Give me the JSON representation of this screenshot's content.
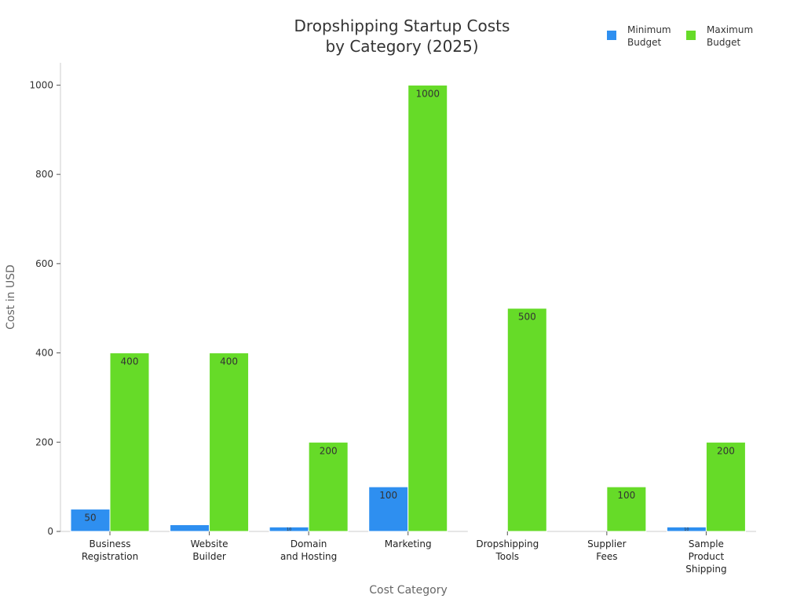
{
  "chart_data": {
    "type": "bar",
    "title_lines": [
      "Dropshipping Startup Costs",
      "by Category (2025)"
    ],
    "xlabel": "Cost Category",
    "ylabel": "Cost in USD",
    "ylim": [
      0,
      1050
    ],
    "yticks": [
      0,
      200,
      400,
      600,
      800,
      1000
    ],
    "grid": false,
    "legend_position": "top-right",
    "categories": [
      [
        "Business",
        "Registration"
      ],
      [
        "Website",
        "Builder"
      ],
      [
        "Domain",
        "and Hosting"
      ],
      [
        "Marketing"
      ],
      [
        "Dropshipping",
        "Tools"
      ],
      [
        "Supplier",
        "Fees"
      ],
      [
        "Sample",
        "Product",
        "Shipping"
      ]
    ],
    "series": [
      {
        "name_lines": [
          "Minimum",
          "Budget"
        ],
        "color": "#2e8ff0",
        "values": [
          50,
          15,
          10,
          100,
          1,
          0,
          10
        ]
      },
      {
        "name_lines": [
          "Maximum",
          "Budget"
        ],
        "color": "#66db28",
        "values": [
          400,
          400,
          200,
          1000,
          500,
          100,
          200
        ]
      }
    ],
    "data_labels": {
      "min": [
        "50",
        "",
        "10",
        "100",
        "",
        "",
        "10"
      ],
      "max": [
        "400",
        "400",
        "200",
        "1000",
        "500",
        "100",
        "200"
      ]
    }
  }
}
